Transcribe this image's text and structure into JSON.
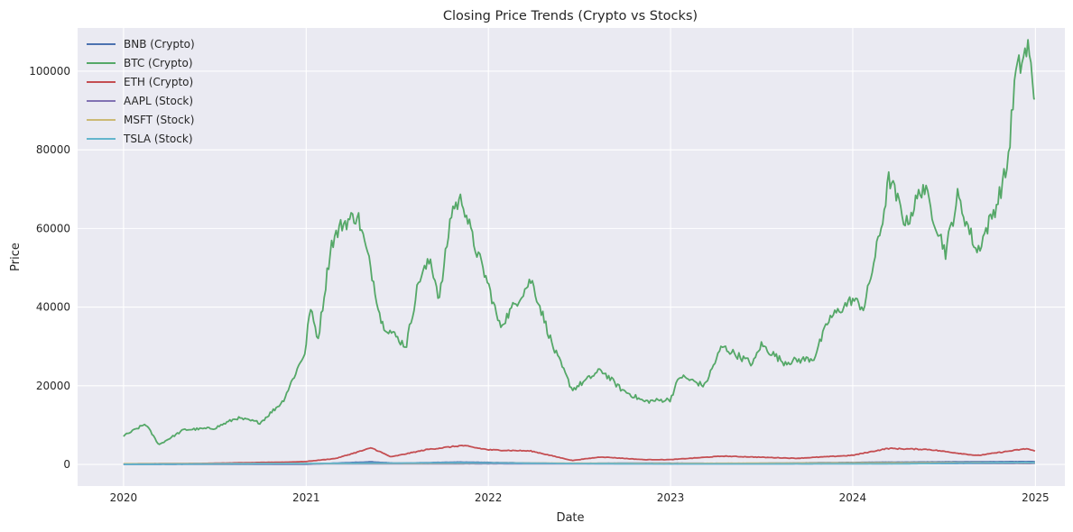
{
  "chart_data": {
    "type": "line",
    "title": "Closing Price Trends (Crypto vs Stocks)",
    "xlabel": "Date",
    "ylabel": "Price",
    "x_ticks": [
      "2020",
      "2021",
      "2022",
      "2023",
      "2024",
      "2025"
    ],
    "y_ticks": [
      "0",
      "20000",
      "40000",
      "60000",
      "80000",
      "100000"
    ],
    "xlim": [
      "2019-10-01",
      "2025-03-01"
    ],
    "ylim": [
      -5500,
      111000
    ],
    "grid": true,
    "legend_position": "top-left",
    "background": "#eaeaf2",
    "series": [
      {
        "name": "BNB (Crypto)",
        "color": "#4c72b0",
        "points": [
          [
            "2020-01-01",
            14
          ],
          [
            "2020-06-01",
            16
          ],
          [
            "2021-01-01",
            40
          ],
          [
            "2021-05-10",
            650
          ],
          [
            "2021-07-01",
            290
          ],
          [
            "2021-11-01",
            580
          ],
          [
            "2022-06-01",
            230
          ],
          [
            "2022-11-01",
            320
          ],
          [
            "2023-06-01",
            240
          ],
          [
            "2024-03-01",
            550
          ],
          [
            "2024-06-01",
            600
          ],
          [
            "2024-12-01",
            700
          ],
          [
            "2024-12-31",
            700
          ]
        ]
      },
      {
        "name": "BTC (Crypto)",
        "color": "#55a868",
        "points": [
          [
            "2020-01-01",
            7200
          ],
          [
            "2020-02-14",
            10300
          ],
          [
            "2020-03-12",
            5000
          ],
          [
            "2020-05-01",
            8800
          ],
          [
            "2020-07-01",
            9200
          ],
          [
            "2020-08-15",
            11800
          ],
          [
            "2020-10-01",
            10600
          ],
          [
            "2020-11-15",
            16000
          ],
          [
            "2020-12-31",
            29000
          ],
          [
            "2021-01-08",
            40000
          ],
          [
            "2021-01-25",
            32000
          ],
          [
            "2021-02-20",
            56000
          ],
          [
            "2021-03-13",
            61000
          ],
          [
            "2021-04-14",
            63500
          ],
          [
            "2021-05-12",
            49000
          ],
          [
            "2021-06-01",
            36000
          ],
          [
            "2021-07-20",
            30000
          ],
          [
            "2021-08-15",
            47000
          ],
          [
            "2021-09-07",
            52000
          ],
          [
            "2021-09-25",
            42000
          ],
          [
            "2021-10-20",
            65000
          ],
          [
            "2021-11-10",
            67500
          ],
          [
            "2021-12-01",
            57000
          ],
          [
            "2021-12-31",
            46000
          ],
          [
            "2022-01-24",
            35000
          ],
          [
            "2022-03-28",
            47000
          ],
          [
            "2022-05-10",
            30000
          ],
          [
            "2022-06-18",
            19000
          ],
          [
            "2022-08-15",
            24000
          ],
          [
            "2022-09-25",
            19000
          ],
          [
            "2022-11-09",
            16000
          ],
          [
            "2022-12-31",
            16500
          ],
          [
            "2023-01-20",
            22500
          ],
          [
            "2023-03-10",
            20000
          ],
          [
            "2023-04-14",
            30000
          ],
          [
            "2023-06-15",
            25500
          ],
          [
            "2023-07-01",
            30500
          ],
          [
            "2023-08-15",
            26000
          ],
          [
            "2023-10-15",
            27000
          ],
          [
            "2023-11-15",
            37000
          ],
          [
            "2023-12-31",
            42000
          ],
          [
            "2024-01-24",
            39800
          ],
          [
            "2024-02-28",
            61000
          ],
          [
            "2024-03-14",
            73000
          ],
          [
            "2024-04-17",
            61000
          ],
          [
            "2024-05-21",
            71000
          ],
          [
            "2024-07-05",
            54000
          ],
          [
            "2024-07-29",
            68000
          ],
          [
            "2024-09-06",
            54000
          ],
          [
            "2024-10-15",
            66000
          ],
          [
            "2024-11-06",
            76000
          ],
          [
            "2024-11-22",
            99000
          ],
          [
            "2024-12-17",
            106000
          ],
          [
            "2024-12-31",
            93000
          ]
        ]
      },
      {
        "name": "ETH (Crypto)",
        "color": "#c44e52",
        "points": [
          [
            "2020-01-01",
            130
          ],
          [
            "2020-06-01",
            240
          ],
          [
            "2020-12-01",
            600
          ],
          [
            "2021-01-01",
            740
          ],
          [
            "2021-03-01",
            1500
          ],
          [
            "2021-05-12",
            4200
          ],
          [
            "2021-06-20",
            1900
          ],
          [
            "2021-09-01",
            3800
          ],
          [
            "2021-11-10",
            4800
          ],
          [
            "2022-01-01",
            3700
          ],
          [
            "2022-03-28",
            3400
          ],
          [
            "2022-06-18",
            1000
          ],
          [
            "2022-08-15",
            1900
          ],
          [
            "2022-11-09",
            1200
          ],
          [
            "2022-12-31",
            1200
          ],
          [
            "2023-04-15",
            2100
          ],
          [
            "2023-09-11",
            1550
          ],
          [
            "2023-12-31",
            2300
          ],
          [
            "2024-03-11",
            4050
          ],
          [
            "2024-06-01",
            3800
          ],
          [
            "2024-09-06",
            2250
          ],
          [
            "2024-12-15",
            4000
          ],
          [
            "2024-12-31",
            3350
          ]
        ]
      },
      {
        "name": "AAPL (Stock)",
        "color": "#8172b3",
        "points": [
          [
            "2020-01-01",
            75
          ],
          [
            "2021-01-01",
            130
          ],
          [
            "2022-01-01",
            180
          ],
          [
            "2023-01-01",
            130
          ],
          [
            "2024-01-01",
            190
          ],
          [
            "2024-12-31",
            250
          ]
        ]
      },
      {
        "name": "MSFT (Stock)",
        "color": "#ccb974",
        "points": [
          [
            "2020-01-01",
            160
          ],
          [
            "2021-01-01",
            220
          ],
          [
            "2022-01-01",
            330
          ],
          [
            "2023-01-01",
            240
          ],
          [
            "2024-01-01",
            375
          ],
          [
            "2024-12-31",
            420
          ]
        ]
      },
      {
        "name": "TSLA (Stock)",
        "color": "#64b5cd",
        "points": [
          [
            "2020-01-01",
            28
          ],
          [
            "2021-01-01",
            240
          ],
          [
            "2021-11-01",
            400
          ],
          [
            "2022-06-01",
            230
          ],
          [
            "2023-01-01",
            110
          ],
          [
            "2024-04-01",
            145
          ],
          [
            "2024-12-17",
            480
          ],
          [
            "2024-12-31",
            400
          ]
        ]
      }
    ]
  }
}
